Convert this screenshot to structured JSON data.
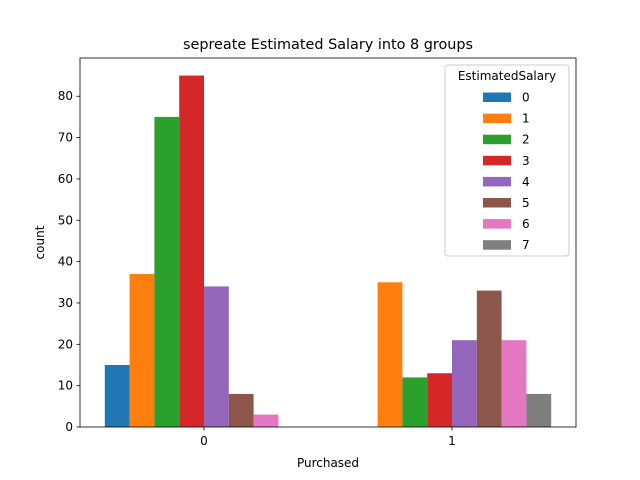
{
  "chart_data": {
    "type": "bar",
    "title": "sepreate Estimated Salary into 8 groups",
    "xlabel": "Purchased",
    "ylabel": "count",
    "categories": [
      "0",
      "1"
    ],
    "ylim": [
      0,
      89.25
    ],
    "yticks": [
      0,
      10,
      20,
      30,
      40,
      50,
      60,
      70,
      80
    ],
    "grid": false,
    "legend": {
      "title": "EstimatedSalary",
      "placement": "top-right"
    },
    "series": [
      {
        "name": "0",
        "color": "#1f77b4",
        "values": [
          15,
          null
        ]
      },
      {
        "name": "1",
        "color": "#ff7f0e",
        "values": [
          37,
          35
        ]
      },
      {
        "name": "2",
        "color": "#2ca02c",
        "values": [
          75,
          12
        ]
      },
      {
        "name": "3",
        "color": "#d62728",
        "values": [
          85,
          13
        ]
      },
      {
        "name": "4",
        "color": "#9467bd",
        "values": [
          34,
          21
        ]
      },
      {
        "name": "5",
        "color": "#8c564b",
        "values": [
          8,
          33
        ]
      },
      {
        "name": "6",
        "color": "#e377c2",
        "values": [
          3,
          21
        ]
      },
      {
        "name": "7",
        "color": "#7f7f7f",
        "values": [
          null,
          8
        ]
      }
    ]
  }
}
